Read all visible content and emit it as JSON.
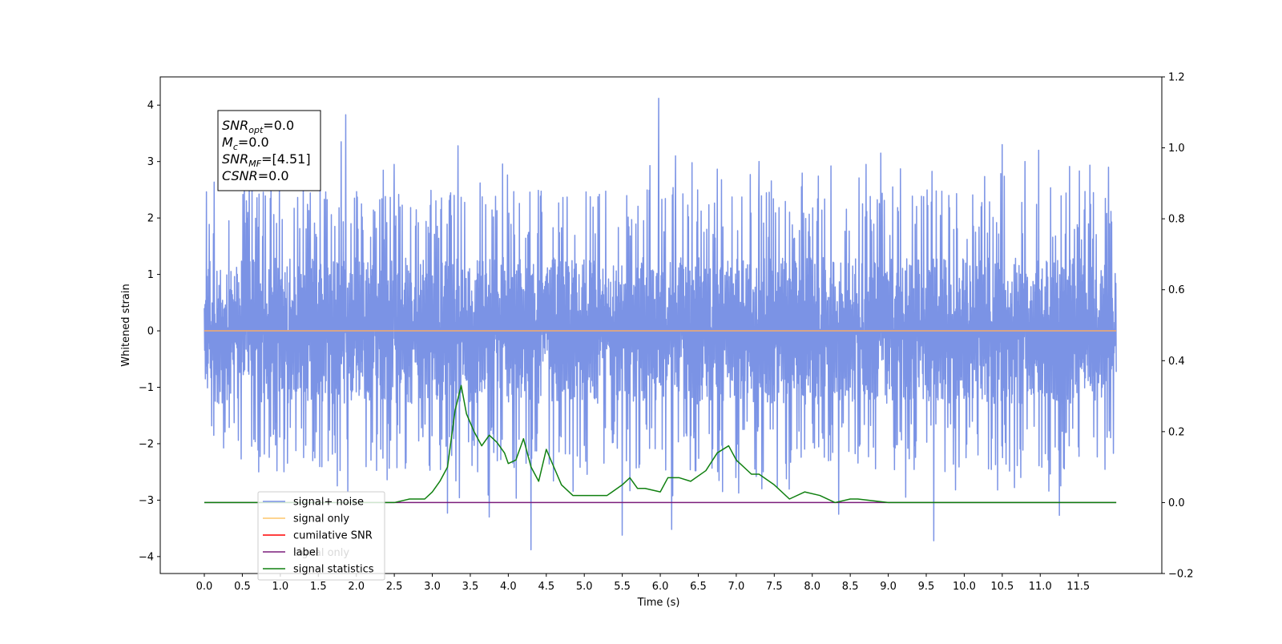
{
  "chart_data": {
    "type": "line",
    "xlabel": "Time (s)",
    "ylabel": "Whitened strain",
    "xlim": [
      -0.58,
      12.6
    ],
    "ylim": [
      -4.3,
      4.5
    ],
    "y2lim": [
      -0.2,
      1.2
    ],
    "x_ticks": [
      "0.0",
      "0.5",
      "1.0",
      "1.5",
      "2.0",
      "2.5",
      "3.0",
      "3.5",
      "4.0",
      "4.5",
      "5.0",
      "5.5",
      "6.0",
      "6.5",
      "7.0",
      "7.5",
      "8.0",
      "8.5",
      "9.0",
      "9.5",
      "10.0",
      "10.5",
      "11.0",
      "11.5"
    ],
    "y_ticks": [
      "4",
      "3",
      "2",
      "1",
      "0",
      "−1",
      "−2",
      "−3",
      "−4"
    ],
    "y2_ticks": [
      "1.2",
      "1.0",
      "0.8",
      "0.6",
      "0.4",
      "0.2",
      "0.0",
      "−0.2"
    ],
    "annotation": {
      "lines": [
        {
          "base": "SNR",
          "sub": "opt",
          "rest": "=0.0"
        },
        {
          "base": "M",
          "sub": "c",
          "rest": "=0.0"
        },
        {
          "base": "SNR",
          "sub": "MF",
          "rest": "=[4.51]"
        },
        {
          "base": "CSNR",
          "sub": "",
          "rest": "=0.0"
        }
      ]
    },
    "legend": {
      "position": "lower-left",
      "entries": [
        {
          "label": "signal+ noise",
          "color": "#7b93e5"
        },
        {
          "label": "signal only",
          "color": "#fdc56b"
        },
        {
          "label": "cumilative SNR",
          "color": "#ff0000"
        },
        {
          "label": "label",
          "color": "#7b1d7b"
        },
        {
          "label": "signal statistics",
          "color": "#108010"
        }
      ],
      "hidden_text": [
        "signal only"
      ]
    },
    "series": [
      {
        "name": "signal+ noise",
        "axis": "left",
        "color": "#7b93e5",
        "t_range": [
          0,
          12
        ],
        "envelope_upper": 1.8,
        "envelope_lower": -1.8,
        "spikes": [
          [
            1.86,
            3.83
          ],
          [
            5.98,
            4.12
          ],
          [
            3.34,
            3.28
          ],
          [
            4.3,
            -3.88
          ],
          [
            9.6,
            -3.72
          ],
          [
            5.5,
            -3.62
          ],
          [
            6.15,
            -3.52
          ],
          [
            3.75,
            -3.3
          ],
          [
            8.35,
            -3.25
          ],
          [
            11.25,
            -3.27
          ],
          [
            3.2,
            -3.23
          ],
          [
            1.8,
            3.35
          ],
          [
            10.5,
            3.3
          ],
          [
            10.98,
            3.2
          ],
          [
            8.9,
            3.15
          ],
          [
            2.5,
            2.95
          ],
          [
            6.2,
            3.1
          ],
          [
            7.3,
            3.0
          ],
          [
            10.8,
            3.0
          ],
          [
            11.9,
            2.9
          ]
        ]
      },
      {
        "name": "signal only",
        "axis": "left",
        "color": "#f5a96b",
        "x": [
          0,
          12
        ],
        "y": [
          0,
          0
        ]
      },
      {
        "name": "label",
        "axis": "right",
        "color": "#7b1d7b",
        "x": [
          0,
          12
        ],
        "y": [
          0,
          0
        ]
      },
      {
        "name": "signal statistics",
        "axis": "right",
        "color": "#108010",
        "x": [
          0,
          2.5,
          2.7,
          2.9,
          3.0,
          3.1,
          3.2,
          3.25,
          3.3,
          3.38,
          3.45,
          3.55,
          3.65,
          3.75,
          3.85,
          3.95,
          4.0,
          4.1,
          4.2,
          4.3,
          4.4,
          4.5,
          4.6,
          4.7,
          4.85,
          5.0,
          5.1,
          5.3,
          5.5,
          5.6,
          5.7,
          5.8,
          6.0,
          6.1,
          6.25,
          6.4,
          6.6,
          6.75,
          6.9,
          7.0,
          7.2,
          7.3,
          7.5,
          7.7,
          7.9,
          8.1,
          8.3,
          8.5,
          8.6,
          9.0,
          9.3,
          9.5,
          12.0
        ],
        "y": [
          0.0,
          0.0,
          0.01,
          0.01,
          0.03,
          0.06,
          0.1,
          0.18,
          0.26,
          0.33,
          0.25,
          0.2,
          0.16,
          0.19,
          0.17,
          0.14,
          0.11,
          0.12,
          0.18,
          0.1,
          0.06,
          0.15,
          0.1,
          0.05,
          0.02,
          0.02,
          0.02,
          0.02,
          0.05,
          0.07,
          0.04,
          0.04,
          0.03,
          0.07,
          0.07,
          0.06,
          0.09,
          0.14,
          0.16,
          0.12,
          0.08,
          0.08,
          0.05,
          0.01,
          0.03,
          0.02,
          0.0,
          0.01,
          0.01,
          0.0,
          0.0,
          0.0,
          0.0
        ]
      }
    ]
  }
}
